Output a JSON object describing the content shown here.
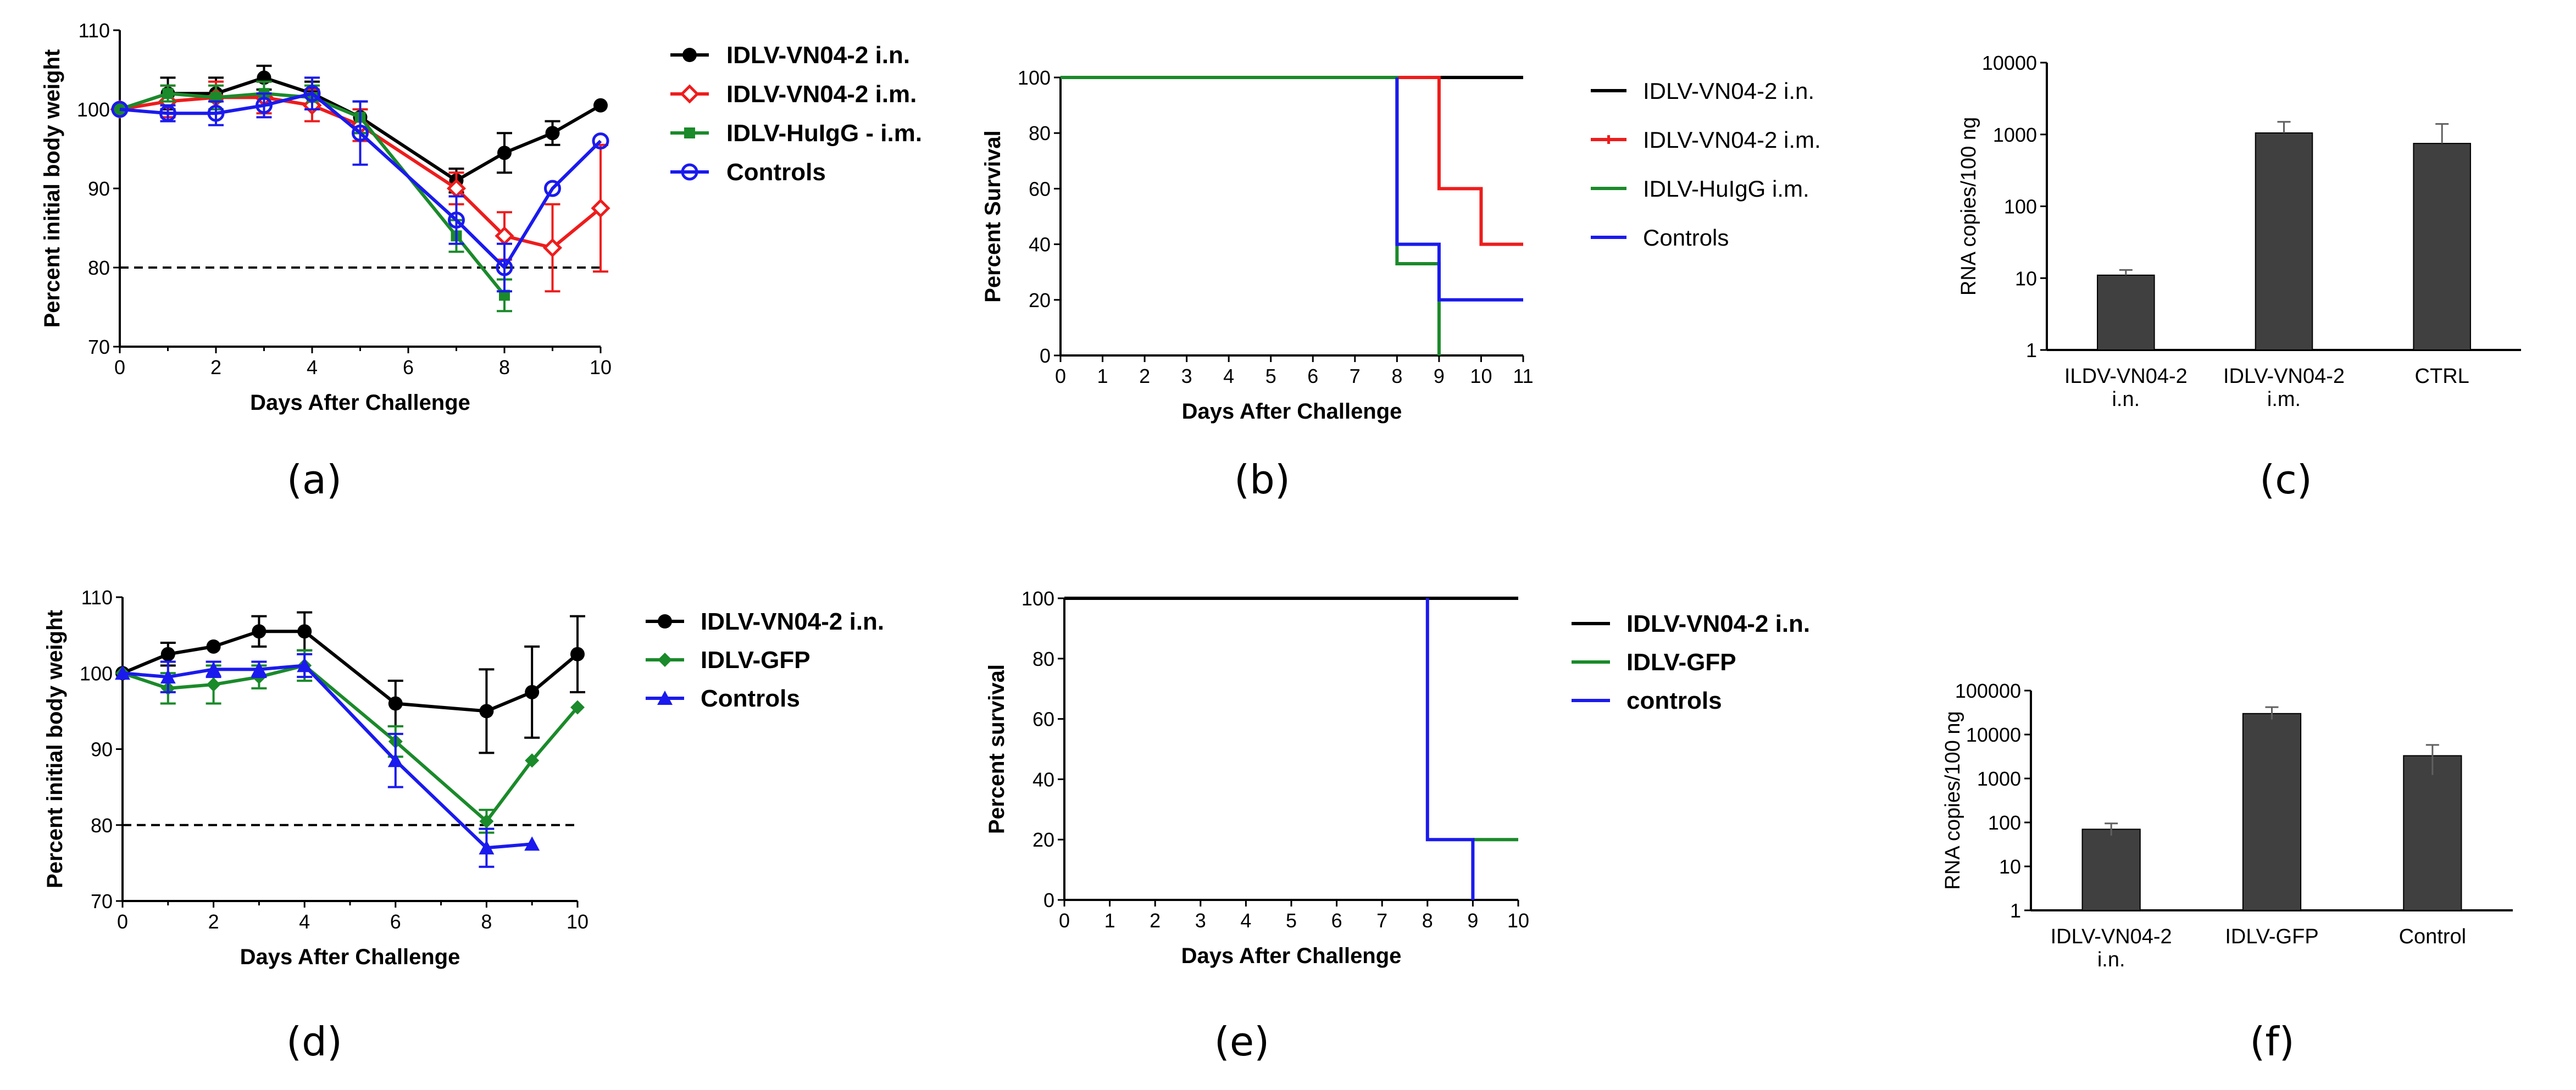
{
  "colors": {
    "black": "#000000",
    "red": "#ee1c1c",
    "green": "#1a8a2a",
    "blue": "#1a1aee",
    "bar": "#404040"
  },
  "chart_data": [
    {
      "id": "a",
      "type": "line",
      "panel_label": "(a)",
      "xlabel": "Days After Challenge",
      "ylabel": "Percent initial body weight",
      "xlim": [
        0,
        10
      ],
      "ylim": [
        70,
        110
      ],
      "xticks": [
        "0",
        "2",
        "4",
        "6",
        "8",
        "10"
      ],
      "yticks": [
        "70",
        "80",
        "90",
        "100",
        "110"
      ],
      "reference_line": 80,
      "series": [
        {
          "name": "IDLV-VN04-2 i.n.",
          "color": "black",
          "marker": "circle",
          "x": [
            0,
            1,
            2,
            3,
            4,
            5,
            7,
            8,
            9,
            10
          ],
          "y": [
            100,
            102,
            102,
            104,
            102,
            99,
            91,
            94.5,
            97,
            100.5
          ],
          "err": [
            0,
            2,
            2,
            1.5,
            1.5,
            2,
            1.5,
            2.5,
            1.5,
            0
          ]
        },
        {
          "name": "IDLV-VN04-2 i.m.",
          "color": "red",
          "marker": "diamond-open",
          "x": [
            0,
            1,
            2,
            3,
            4,
            5,
            7,
            8,
            9,
            10
          ],
          "y": [
            100,
            101,
            101.5,
            101.5,
            100.5,
            98,
            90,
            84,
            82.5,
            87.5
          ],
          "err": [
            0,
            2,
            2,
            2,
            2,
            2,
            2,
            3,
            5.5,
            8
          ]
        },
        {
          "name": "IDLV-HuIgG - i.m.",
          "color": "green",
          "marker": "square",
          "x": [
            0,
            1,
            2,
            3,
            4,
            5,
            7,
            8
          ],
          "y": [
            100,
            102,
            101.5,
            102,
            101.5,
            99,
            84,
            76.5
          ],
          "err": [
            0,
            1,
            1.5,
            1.5,
            1.5,
            2,
            2,
            2
          ]
        },
        {
          "name": "Controls",
          "color": "blue",
          "marker": "circle-open",
          "x": [
            0,
            1,
            2,
            3,
            4,
            5,
            7,
            8,
            9,
            10
          ],
          "y": [
            100,
            99.5,
            99.5,
            100.5,
            102,
            97,
            86,
            80,
            90,
            96
          ],
          "err": [
            0,
            1,
            1.5,
            1.5,
            2,
            4,
            3,
            3,
            0,
            0
          ]
        }
      ]
    },
    {
      "id": "b",
      "type": "line",
      "subtype": "step",
      "panel_label": "(b)",
      "xlabel": "Days After Challenge",
      "ylabel": "Percent Survival",
      "xlim": [
        0,
        11
      ],
      "ylim": [
        0,
        100
      ],
      "xticks": [
        "0",
        "1",
        "2",
        "3",
        "4",
        "5",
        "6",
        "7",
        "8",
        "9",
        "10",
        "11"
      ],
      "yticks": [
        "0",
        "20",
        "40",
        "60",
        "80",
        "100"
      ],
      "series": [
        {
          "name": "IDLV-VN04-2 i.n.",
          "color": "black",
          "x": [
            0,
            11
          ],
          "y": [
            100,
            100
          ]
        },
        {
          "name": "IDLV-VN04-2 i.m.",
          "color": "red",
          "x": [
            0,
            9,
            9,
            10,
            10,
            11
          ],
          "y": [
            100,
            100,
            60,
            60,
            40,
            40
          ]
        },
        {
          "name": "IDLV-HuIgG i.m.",
          "color": "green",
          "x": [
            0,
            8,
            8,
            9,
            9
          ],
          "y": [
            100,
            100,
            33,
            33,
            0
          ]
        },
        {
          "name": "Controls",
          "color": "blue",
          "x": [
            8,
            8,
            9,
            9,
            11
          ],
          "y": [
            100,
            40,
            40,
            20,
            20
          ]
        }
      ]
    },
    {
      "id": "c",
      "type": "bar",
      "scale": "log",
      "panel_label": "(c)",
      "ylabel": "RNA copies/100 ng",
      "ylim": [
        1,
        10000
      ],
      "yticks": [
        "1",
        "10",
        "100",
        "1000",
        "10000"
      ],
      "categories": [
        "ILDV-VN04-2\ni.n.",
        "IDLV-VN04-2\ni.m.",
        "CTRL"
      ],
      "values": [
        11,
        1050,
        750
      ],
      "err_upper": [
        13,
        1500,
        1400
      ],
      "err_lower": [
        11,
        1050,
        750
      ]
    },
    {
      "id": "d",
      "type": "line",
      "panel_label": "(d)",
      "xlabel": "Days After Challenge",
      "ylabel": "Percent initial body weight",
      "xlim": [
        0,
        10
      ],
      "ylim": [
        70,
        110
      ],
      "xticks": [
        "0",
        "2",
        "4",
        "6",
        "8",
        "10"
      ],
      "yticks": [
        "70",
        "80",
        "90",
        "100",
        "110"
      ],
      "reference_line": 80,
      "series": [
        {
          "name": "IDLV-VN04-2 i.n.",
          "color": "black",
          "marker": "circle",
          "x": [
            0,
            1,
            2,
            3,
            4,
            6,
            8,
            9,
            10
          ],
          "y": [
            100,
            102.5,
            103.5,
            105.5,
            105.5,
            96,
            95,
            97.5,
            102.5
          ],
          "err": [
            0,
            1.5,
            0,
            2,
            2.5,
            3,
            5.5,
            6,
            5
          ]
        },
        {
          "name": "IDLV-GFP",
          "color": "green",
          "marker": "diamond",
          "x": [
            0,
            1,
            2,
            3,
            4,
            6,
            8,
            9,
            10
          ],
          "y": [
            100,
            98,
            98.5,
            99.5,
            101,
            91,
            80.5,
            88.5,
            95.5
          ],
          "err": [
            0,
            2,
            2.5,
            1.5,
            2,
            2,
            1.5,
            0,
            0
          ]
        },
        {
          "name": "Controls",
          "color": "blue",
          "marker": "triangle",
          "x": [
            0,
            1,
            2,
            3,
            4,
            6,
            8,
            9
          ],
          "y": [
            100,
            99.5,
            100.5,
            100.5,
            101,
            88.5,
            77,
            77.5
          ],
          "err": [
            0,
            2,
            1,
            1,
            1.5,
            3.5,
            2.5,
            0
          ]
        }
      ]
    },
    {
      "id": "e",
      "type": "line",
      "subtype": "step",
      "panel_label": "(e)",
      "xlabel": "Days After Challenge",
      "ylabel": "Percent survival",
      "xlim": [
        0,
        10
      ],
      "ylim": [
        0,
        100
      ],
      "xticks": [
        "0",
        "1",
        "2",
        "3",
        "4",
        "5",
        "6",
        "7",
        "8",
        "9",
        "10"
      ],
      "yticks": [
        "0",
        "20",
        "40",
        "60",
        "80",
        "100"
      ],
      "series": [
        {
          "name": "IDLV-VN04-2 i.n.",
          "color": "black",
          "x": [
            0,
            10
          ],
          "y": [
            100,
            100
          ]
        },
        {
          "name": "IDLV-GFP",
          "color": "green",
          "x": [
            9,
            10
          ],
          "y": [
            20,
            20
          ]
        },
        {
          "name": "controls",
          "color": "blue",
          "x": [
            8,
            8,
            9,
            9
          ],
          "y": [
            100,
            20,
            20,
            0
          ]
        }
      ]
    },
    {
      "id": "f",
      "type": "bar",
      "scale": "log",
      "panel_label": "(f)",
      "ylabel": "RNA copies/100 ng",
      "ylim": [
        1,
        100000
      ],
      "yticks": [
        "1",
        "10",
        "100",
        "1000",
        "10000",
        "100000"
      ],
      "categories": [
        "IDLV-VN04-2\ni.n.",
        "IDLV-GFP",
        "Control"
      ],
      "values": [
        70,
        30000,
        3300
      ],
      "err_upper": [
        95,
        42000,
        5800
      ],
      "err_lower": [
        50,
        22000,
        1200
      ]
    }
  ]
}
